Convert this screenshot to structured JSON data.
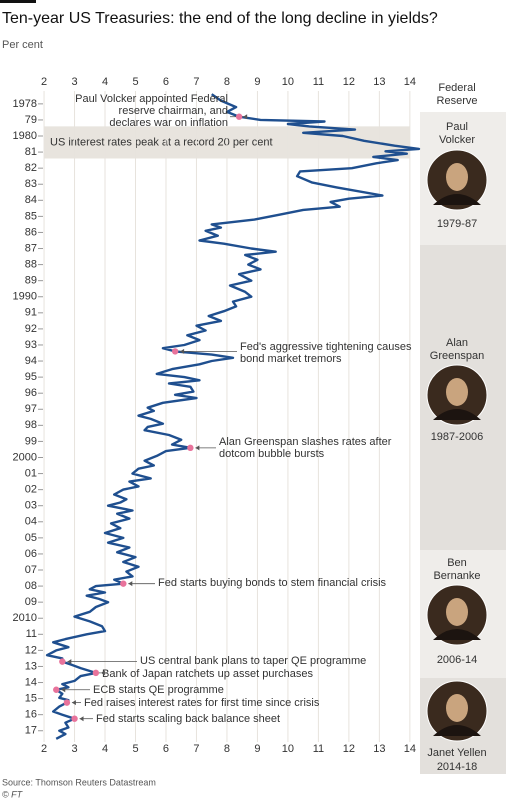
{
  "chart_data": {
    "type": "line",
    "orientation": "vertical-time",
    "title": "Ten-year US Treasuries: the end of the long decline in yields?",
    "subtitle": "Per cent",
    "source": "Source: Thomson Reuters Datastream",
    "credit": "© FT",
    "color": "#1f4f8f",
    "marker_color": "#e8739b",
    "ylim": [
      1.9,
      14.3
    ],
    "yticks": [
      2,
      3,
      4,
      5,
      6,
      7,
      8,
      9,
      10,
      11,
      12,
      13,
      14
    ],
    "xlim": [
      1977.2,
      2017.7
    ],
    "xticks": [
      1978,
      {
        "value": 1979,
        "label": "79"
      },
      1980,
      {
        "value": 1981,
        "label": "81"
      },
      {
        "value": 1982,
        "label": "82"
      },
      {
        "value": 1983,
        "label": "83"
      },
      {
        "value": 1984,
        "label": "84"
      },
      {
        "value": 1985,
        "label": "85"
      },
      {
        "value": 1986,
        "label": "86"
      },
      {
        "value": 1987,
        "label": "87"
      },
      {
        "value": 1988,
        "label": "88"
      },
      {
        "value": 1989,
        "label": "89"
      },
      1990,
      {
        "value": 1991,
        "label": "91"
      },
      {
        "value": 1992,
        "label": "92"
      },
      {
        "value": 1993,
        "label": "93"
      },
      {
        "value": 1994,
        "label": "94"
      },
      {
        "value": 1995,
        "label": "95"
      },
      {
        "value": 1996,
        "label": "96"
      },
      {
        "value": 1997,
        "label": "97"
      },
      {
        "value": 1998,
        "label": "98"
      },
      {
        "value": 1999,
        "label": "99"
      },
      2000,
      {
        "value": 2001,
        "label": "01"
      },
      {
        "value": 2002,
        "label": "02"
      },
      {
        "value": 2003,
        "label": "03"
      },
      {
        "value": 2004,
        "label": "04"
      },
      {
        "value": 2005,
        "label": "05"
      },
      {
        "value": 2006,
        "label": "06"
      },
      {
        "value": 2007,
        "label": "07"
      },
      {
        "value": 2008,
        "label": "08"
      },
      {
        "value": 2009,
        "label": "09"
      },
      2010,
      {
        "value": 2011,
        "label": "11"
      },
      {
        "value": 2012,
        "label": "12"
      },
      {
        "value": 2013,
        "label": "13"
      },
      {
        "value": 2014,
        "label": "14"
      },
      {
        "value": 2015,
        "label": "15"
      },
      {
        "value": 2016,
        "label": "16"
      },
      {
        "value": 2017,
        "label": "17"
      }
    ],
    "x": [
      1977.4,
      1977.8,
      1978.2,
      1978.5,
      1978.8,
      1979.0,
      1979.1,
      1979.25,
      1979.4,
      1979.6,
      1979.8,
      1980.0,
      1980.3,
      1980.6,
      1980.8,
      1980.95,
      1981.1,
      1981.3,
      1981.5,
      1981.7,
      1982.0,
      1982.2,
      1982.5,
      1982.9,
      1983.2,
      1983.7,
      1983.9,
      1984.1,
      1984.4,
      1984.6,
      1984.9,
      1985.2,
      1985.5,
      1985.7,
      1985.9,
      1986.2,
      1986.5,
      1986.7,
      1987.0,
      1987.2,
      1987.4,
      1987.7,
      1988.0,
      1988.3,
      1988.6,
      1989.0,
      1989.3,
      1989.7,
      1990.0,
      1990.3,
      1990.6,
      1990.9,
      1991.2,
      1991.5,
      1991.8,
      1992.1,
      1992.4,
      1992.7,
      1993.0,
      1993.2,
      1993.4,
      1993.6,
      1993.8,
      1994.0,
      1994.2,
      1994.5,
      1994.8,
      1995.0,
      1995.2,
      1995.4,
      1995.6,
      1995.9,
      1996.1,
      1996.3,
      1996.6,
      1996.9,
      1997.1,
      1997.4,
      1997.6,
      1997.9,
      1998.1,
      1998.3,
      1998.6,
      1998.9,
      1999.2,
      1999.4,
      1999.6,
      1999.9,
      2000.2,
      2000.5,
      2000.7,
      2001.0,
      2001.3,
      2001.5,
      2001.8,
      2002.0,
      2002.3,
      2002.6,
      2002.8,
      2003.0,
      2003.3,
      2003.5,
      2003.8,
      2004.1,
      2004.4,
      2004.7,
      2005.0,
      2005.3,
      2005.6,
      2005.9,
      2006.2,
      2006.5,
      2006.8,
      2007.1,
      2007.4,
      2007.6,
      2007.85,
      2008.0,
      2008.2,
      2008.4,
      2008.6,
      2008.8,
      2009.0,
      2009.3,
      2009.6,
      2009.9,
      2010.2,
      2010.5,
      2010.8,
      2011.0,
      2011.3,
      2011.5,
      2011.8,
      2012.0,
      2012.3,
      2012.5,
      2012.7,
      2012.9,
      2013.1,
      2013.4,
      2013.6,
      2013.9,
      2014.1,
      2014.3,
      2014.45,
      2014.7,
      2014.95,
      2015.1,
      2015.25,
      2015.5,
      2015.8,
      2016.0,
      2016.25,
      2016.5,
      2016.8,
      2017.0,
      2017.2,
      2017.5
    ],
    "values": [
      7.5,
      7.8,
      8.3,
      8.0,
      8.4,
      9.1,
      11.2,
      10.0,
      10.7,
      12.2,
      10.5,
      11.8,
      12.5,
      13.5,
      14.3,
      13.2,
      13.9,
      12.8,
      13.6,
      12.9,
      12.1,
      10.4,
      10.3,
      10.8,
      11.6,
      13.1,
      12.0,
      11.4,
      11.7,
      10.5,
      9.7,
      8.9,
      7.5,
      7.8,
      7.3,
      7.7,
      7.1,
      7.9,
      8.8,
      9.6,
      8.6,
      9.0,
      8.7,
      9.1,
      8.4,
      8.8,
      8.1,
      8.6,
      8.8,
      8.2,
      8.3,
      7.9,
      7.4,
      7.8,
      7.0,
      7.3,
      6.7,
      7.1,
      6.6,
      5.9,
      6.3,
      7.5,
      8.2,
      7.5,
      7.1,
      6.2,
      5.7,
      6.6,
      7.1,
      6.1,
      6.8,
      6.9,
      6.3,
      7.0,
      5.9,
      5.4,
      5.6,
      5.1,
      5.5,
      5.9,
      5.4,
      5.3,
      6.1,
      6.5,
      6.2,
      6.8,
      6.0,
      5.7,
      5.3,
      5.6,
      5.1,
      4.9,
      5.5,
      4.8,
      5.1,
      4.6,
      4.3,
      4.7,
      4.5,
      4.1,
      4.9,
      4.4,
      4.8,
      4.2,
      4.5,
      4.0,
      4.6,
      4.1,
      4.8,
      4.4,
      5.0,
      4.6,
      5.1,
      4.7,
      4.9,
      4.3,
      4.6,
      3.7,
      3.5,
      4.0,
      3.4,
      3.8,
      4.1,
      3.7,
      3.5,
      3.0,
      3.5,
      3.9,
      4.0,
      3.4,
      2.7,
      2.3,
      2.8,
      2.4,
      2.1,
      2.6,
      2.6,
      2.9,
      3.2,
      3.7,
      3.2,
      3.0,
      2.6,
      2.8,
      2.4,
      2.6,
      2.5,
      2.8,
      2.75,
      2.5,
      2.3,
      2.6,
      3.0,
      2.7,
      2.8,
      2.5,
      2.7,
      2.4
    ],
    "band": {
      "text": "US interest rates peak at a record 20 per cent",
      "from": 1979.4,
      "to": 1981.4
    },
    "annotations": [
      {
        "text": [
          "Paul Volcker appointed Federal",
          "reserve chairman, and",
          "declares war on inflation"
        ],
        "x": 1978.8,
        "value": 8.4
      },
      {
        "text": [
          "Fed's aggressive tightening causes",
          "bond market tremors"
        ],
        "x": 1993.4,
        "value": 6.3
      },
      {
        "text": [
          "Alan Greenspan slashes rates after",
          "dotcom bubble bursts"
        ],
        "x": 1999.4,
        "value": 6.8
      },
      {
        "text": [
          "Fed starts buying bonds to stem financial crisis"
        ],
        "x": 2007.85,
        "value": 4.6
      },
      {
        "text": [
          "US central bank plans to taper QE programme"
        ],
        "x": 2012.7,
        "value": 2.6
      },
      {
        "text": [
          "Bank of Japan ratchets up asset purchases"
        ],
        "x": 2013.4,
        "value": 3.7
      },
      {
        "text": [
          "ECB starts QE programme"
        ],
        "x": 2014.45,
        "value": 2.4
      },
      {
        "text": [
          "Fed raises interest rates for first time since crisis"
        ],
        "x": 2015.25,
        "value": 2.75
      },
      {
        "text": [
          "Fed starts scaling back balance sheet"
        ],
        "x": 2016.25,
        "value": 3.0
      }
    ],
    "panel_title": [
      "Federal",
      "Reserve"
    ],
    "chairs": [
      {
        "name": [
          "Paul",
          "Volcker"
        ],
        "term": "1979-87"
      },
      {
        "name": [
          "Alan",
          "Greenspan"
        ],
        "term": "1987-2006"
      },
      {
        "name": [
          "Ben",
          "Bernanke"
        ],
        "term": "2006-14"
      },
      {
        "name": [
          "Janet Yellen"
        ],
        "term": "2014-18"
      }
    ]
  }
}
